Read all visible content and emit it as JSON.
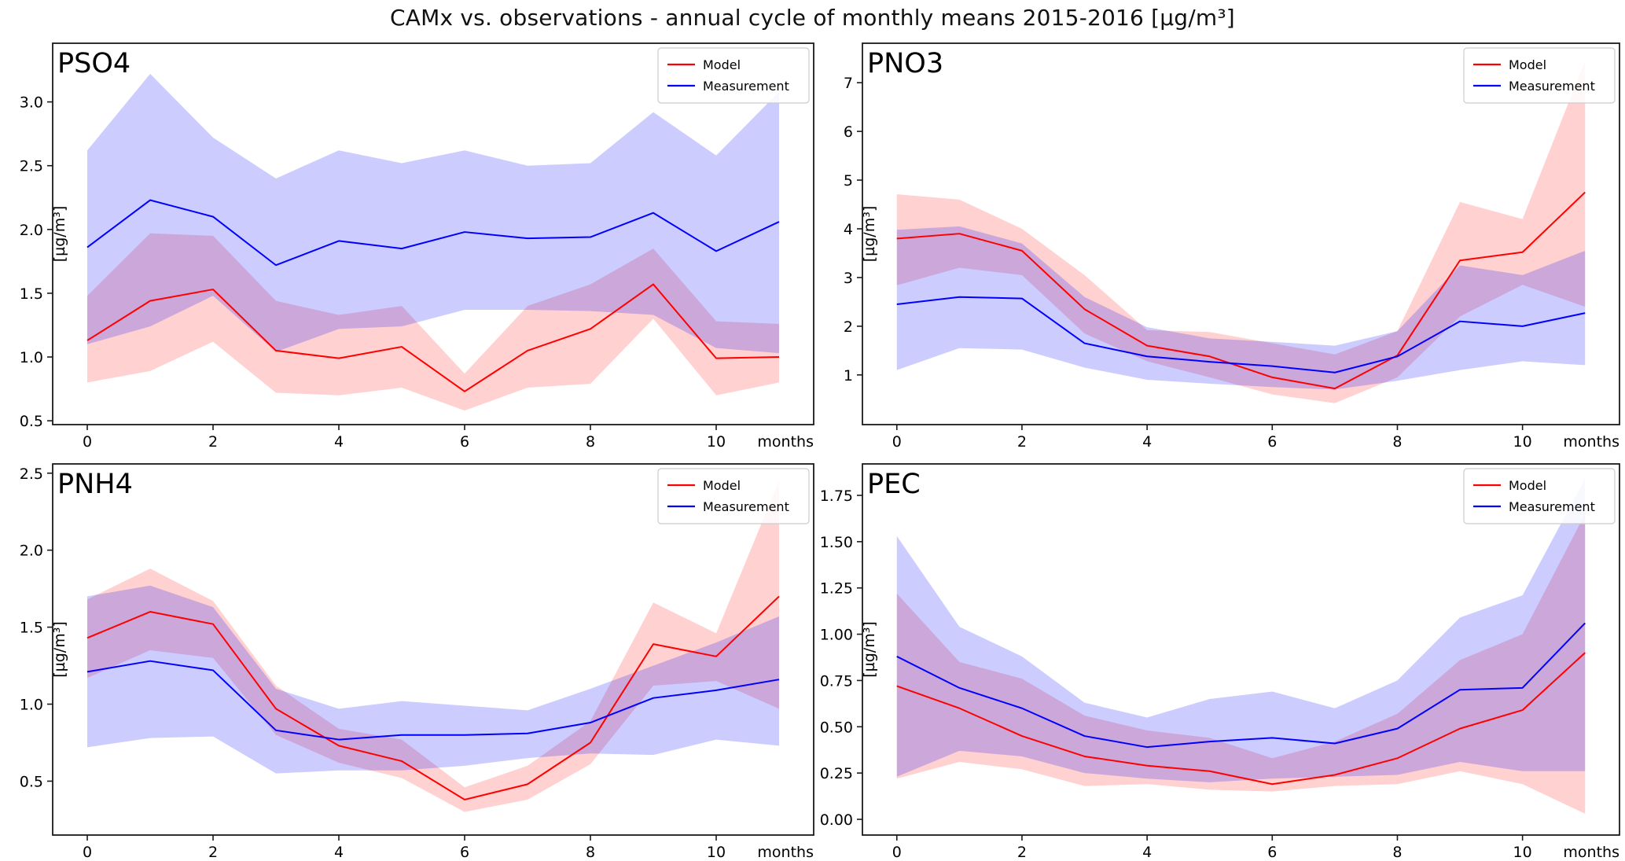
{
  "title": "CAMx vs. observations - annual cycle of monthly means 2015-2016 [µg/m³]",
  "colors": {
    "model": "#ff0000",
    "measurement": "#0000ff",
    "model_band": "rgba(255,0,0,0.18)",
    "measurement_band": "rgba(0,0,255,0.20)",
    "spine": "#1a1a1a",
    "legend_border": "#cccccc",
    "text": "#000000"
  },
  "x_axis": {
    "xlim": [
      -0.55,
      11.55
    ],
    "ticks": [
      0,
      2,
      4,
      6,
      8,
      10
    ],
    "tick_labels": [
      "0",
      "2",
      "4",
      "6",
      "8",
      "10"
    ],
    "end_label": "months"
  },
  "legend": {
    "entries": [
      {
        "label": "Model",
        "color_key": "model"
      },
      {
        "label": "Measurement",
        "color_key": "measurement"
      }
    ]
  },
  "chart_data": [
    {
      "type": "line",
      "title": "PSO4",
      "ylabel": "[µg/m³]",
      "x": [
        0,
        1,
        2,
        3,
        4,
        5,
        6,
        7,
        8,
        9,
        10,
        11
      ],
      "ylim": [
        0.47,
        3.46
      ],
      "yticks": [
        0.5,
        1.0,
        1.5,
        2.0,
        2.5,
        3.0
      ],
      "ytick_labels": [
        "0.5",
        "1.0",
        "1.5",
        "2.0",
        "2.5",
        "3.0"
      ],
      "grid": false,
      "legend_position": "top-right",
      "series": [
        {
          "name": "Model",
          "color_key": "model",
          "mean": [
            1.13,
            1.44,
            1.53,
            1.05,
            0.99,
            1.08,
            0.73,
            1.05,
            1.22,
            1.57,
            0.99,
            1.0
          ],
          "band_upper": [
            1.48,
            1.97,
            1.95,
            1.44,
            1.33,
            1.4,
            0.87,
            1.4,
            1.57,
            1.85,
            1.28,
            1.26
          ],
          "band_lower": [
            0.8,
            0.89,
            1.12,
            0.72,
            0.7,
            0.76,
            0.58,
            0.76,
            0.79,
            1.3,
            0.7,
            0.8
          ]
        },
        {
          "name": "Measurement",
          "color_key": "measurement",
          "mean": [
            1.86,
            2.23,
            2.1,
            1.72,
            1.91,
            1.85,
            1.98,
            1.93,
            1.94,
            2.13,
            1.83,
            2.06
          ],
          "band_upper": [
            2.62,
            3.22,
            2.72,
            2.4,
            2.62,
            2.52,
            2.62,
            2.5,
            2.52,
            2.92,
            2.58,
            3.08
          ],
          "band_lower": [
            1.1,
            1.24,
            1.48,
            1.04,
            1.22,
            1.24,
            1.37,
            1.37,
            1.36,
            1.33,
            1.07,
            1.03
          ]
        }
      ]
    },
    {
      "type": "line",
      "title": "PNO3",
      "ylabel": "[µg/m³]",
      "x": [
        0,
        1,
        2,
        3,
        4,
        5,
        6,
        7,
        8,
        9,
        10,
        11
      ],
      "ylim": [
        -0.02,
        7.81
      ],
      "yticks": [
        1,
        2,
        3,
        4,
        5,
        6,
        7
      ],
      "ytick_labels": [
        "1",
        "2",
        "3",
        "4",
        "5",
        "6",
        "7"
      ],
      "grid": false,
      "legend_position": "top-right",
      "series": [
        {
          "name": "Model",
          "color_key": "model",
          "mean": [
            3.8,
            3.9,
            3.55,
            2.35,
            1.6,
            1.38,
            0.95,
            0.72,
            1.4,
            3.35,
            3.52,
            4.75
          ],
          "band_upper": [
            4.71,
            4.6,
            4.0,
            3.05,
            1.92,
            1.88,
            1.65,
            1.42,
            1.9,
            4.55,
            4.2,
            7.45
          ],
          "band_lower": [
            2.84,
            3.2,
            3.05,
            1.85,
            1.28,
            0.95,
            0.6,
            0.42,
            0.95,
            2.2,
            2.85,
            2.4
          ]
        },
        {
          "name": "Measurement",
          "color_key": "measurement",
          "mean": [
            2.45,
            2.6,
            2.57,
            1.65,
            1.38,
            1.27,
            1.18,
            1.05,
            1.38,
            2.1,
            2.0,
            2.27
          ],
          "band_upper": [
            3.98,
            4.05,
            3.7,
            2.6,
            1.98,
            1.75,
            1.68,
            1.6,
            1.9,
            3.25,
            3.05,
            3.55
          ],
          "band_lower": [
            1.1,
            1.55,
            1.52,
            1.15,
            0.9,
            0.82,
            0.75,
            0.7,
            0.88,
            1.1,
            1.28,
            1.2
          ]
        }
      ]
    },
    {
      "type": "line",
      "title": "PNH4",
      "ylabel": "[µg/m³]",
      "x": [
        0,
        1,
        2,
        3,
        4,
        5,
        6,
        7,
        8,
        9,
        10,
        11
      ],
      "ylim": [
        0.15,
        2.56
      ],
      "yticks": [
        0.5,
        1.0,
        1.5,
        2.0,
        2.5
      ],
      "ytick_labels": [
        "0.5",
        "1.0",
        "1.5",
        "2.0",
        "2.5"
      ],
      "grid": false,
      "legend_position": "top-right",
      "series": [
        {
          "name": "Model",
          "color_key": "model",
          "mean": [
            1.43,
            1.6,
            1.52,
            0.97,
            0.73,
            0.63,
            0.38,
            0.48,
            0.75,
            1.39,
            1.31,
            1.7
          ],
          "band_upper": [
            1.68,
            1.88,
            1.67,
            1.12,
            0.84,
            0.77,
            0.46,
            0.6,
            0.89,
            1.66,
            1.46,
            2.45
          ],
          "band_lower": [
            1.17,
            1.35,
            1.3,
            0.8,
            0.62,
            0.52,
            0.3,
            0.38,
            0.61,
            1.12,
            1.15,
            0.97
          ]
        },
        {
          "name": "Measurement",
          "color_key": "measurement",
          "mean": [
            1.21,
            1.28,
            1.22,
            0.83,
            0.77,
            0.8,
            0.8,
            0.81,
            0.88,
            1.04,
            1.09,
            1.16
          ],
          "band_upper": [
            1.7,
            1.77,
            1.63,
            1.1,
            0.97,
            1.02,
            0.99,
            0.96,
            1.1,
            1.25,
            1.4,
            1.57
          ],
          "band_lower": [
            0.72,
            0.78,
            0.79,
            0.55,
            0.57,
            0.57,
            0.6,
            0.65,
            0.68,
            0.67,
            0.77,
            0.73
          ]
        }
      ]
    },
    {
      "type": "line",
      "title": "PEC",
      "ylabel": "[µg/m³]",
      "x": [
        0,
        1,
        2,
        3,
        4,
        5,
        6,
        7,
        8,
        9,
        10,
        11
      ],
      "ylim": [
        -0.085,
        1.92
      ],
      "yticks": [
        0.0,
        0.25,
        0.5,
        0.75,
        1.0,
        1.25,
        1.5,
        1.75
      ],
      "ytick_labels": [
        "0.00",
        "0.25",
        "0.50",
        "0.75",
        "1.00",
        "1.25",
        "1.50",
        "1.75"
      ],
      "grid": false,
      "legend_position": "top-right",
      "series": [
        {
          "name": "Model",
          "color_key": "model",
          "mean": [
            0.72,
            0.6,
            0.45,
            0.34,
            0.29,
            0.26,
            0.19,
            0.24,
            0.33,
            0.49,
            0.59,
            0.9
          ],
          "band_upper": [
            1.22,
            0.85,
            0.76,
            0.56,
            0.48,
            0.44,
            0.33,
            0.42,
            0.57,
            0.86,
            1.0,
            1.65
          ],
          "band_lower": [
            0.22,
            0.31,
            0.27,
            0.18,
            0.19,
            0.16,
            0.15,
            0.18,
            0.19,
            0.26,
            0.19,
            0.03
          ]
        },
        {
          "name": "Measurement",
          "color_key": "measurement",
          "mean": [
            0.88,
            0.71,
            0.6,
            0.45,
            0.39,
            0.42,
            0.44,
            0.41,
            0.49,
            0.7,
            0.71,
            1.06
          ],
          "band_upper": [
            1.53,
            1.04,
            0.88,
            0.63,
            0.55,
            0.65,
            0.69,
            0.6,
            0.75,
            1.09,
            1.21,
            1.84
          ],
          "band_lower": [
            0.23,
            0.37,
            0.34,
            0.25,
            0.22,
            0.2,
            0.22,
            0.23,
            0.24,
            0.31,
            0.26,
            0.26
          ]
        }
      ]
    }
  ]
}
